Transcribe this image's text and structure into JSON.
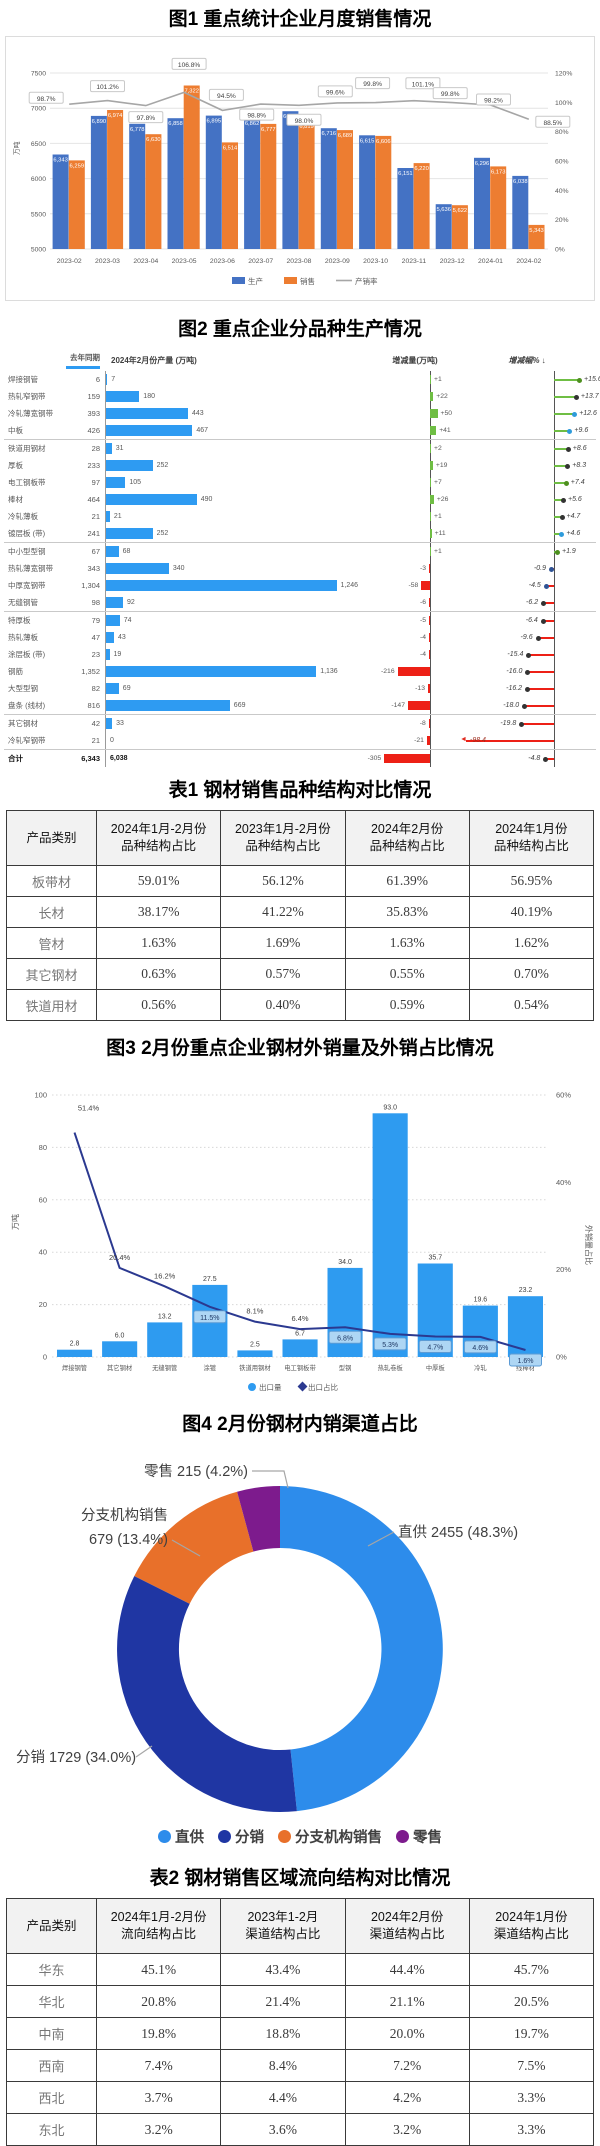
{
  "fig1": {
    "title": "图1 重点统计企业月度销售情况"
  },
  "fig2": {
    "title": "图2 重点企业分品种生产情况"
  },
  "fig3": {
    "title": "图3 2月份重点企业钢材外销量及外销占比情况"
  },
  "fig4": {
    "title": "图4 2月份钢材内销渠道占比"
  },
  "table1": {
    "title": "表1 钢材销售品种结构对比情况",
    "headers": [
      "产品类别",
      "2024年1月-2月份\n品种结构占比",
      "2023年1月-2月份\n品种结构占比",
      "2024年2月份\n品种结构占比",
      "2024年1月份\n品种结构占比"
    ],
    "rows": [
      [
        "板带材",
        "59.01%",
        "56.12%",
        "61.39%",
        "56.95%"
      ],
      [
        "长材",
        "38.17%",
        "41.22%",
        "35.83%",
        "40.19%"
      ],
      [
        "管材",
        "1.63%",
        "1.69%",
        "1.63%",
        "1.62%"
      ],
      [
        "其它钢材",
        "0.63%",
        "0.57%",
        "0.55%",
        "0.70%"
      ],
      [
        "铁道用材",
        "0.56%",
        "0.40%",
        "0.59%",
        "0.54%"
      ]
    ]
  },
  "table2": {
    "title": "表2 钢材销售区域流向结构对比情况",
    "headers": [
      "产品类别",
      "2024年1月-2月份\n流向结构占比",
      "2023年1-2月\n渠道结构占比",
      "2024年2月份\n渠道结构占比",
      "2024年1月份\n渠道结构占比"
    ],
    "rows": [
      [
        "华东",
        "45.1%",
        "43.4%",
        "44.4%",
        "45.7%"
      ],
      [
        "华北",
        "20.8%",
        "21.4%",
        "21.1%",
        "20.5%"
      ],
      [
        "中南",
        "19.8%",
        "18.8%",
        "20.0%",
        "19.7%"
      ],
      [
        "西南",
        "7.4%",
        "8.4%",
        "7.2%",
        "7.5%"
      ],
      [
        "西北",
        "3.7%",
        "4.4%",
        "4.2%",
        "3.3%"
      ],
      [
        "东北",
        "3.2%",
        "3.6%",
        "3.2%",
        "3.3%"
      ]
    ]
  },
  "chart_data": [
    {
      "figure": 1,
      "type": "bar",
      "title": "图1 重点统计企业月度销售情况",
      "ylabel": "万吨",
      "y_left_ticks": [
        5000,
        5500,
        6000,
        6500,
        7000,
        7500
      ],
      "y_right_ticks": [
        "0%",
        "20%",
        "40%",
        "60%",
        "80%",
        "100%",
        "120%"
      ],
      "ylim": [
        5000,
        7500
      ],
      "ylim_right": [
        0,
        120
      ],
      "categories": [
        "2023-02",
        "2023-03",
        "2023-04",
        "2023-05",
        "2023-06",
        "2023-07",
        "2023-08",
        "2023-09",
        "2023-10",
        "2023-11",
        "2023-12",
        "2024-01",
        "2024-02"
      ],
      "series": [
        {
          "name": "生产",
          "type": "bar",
          "color": "#4472C4",
          "values": [
            6343,
            6890,
            6778,
            6858,
            6895,
            6862,
            6957,
            6716,
            6615,
            6151,
            5636,
            6296,
            6038
          ]
        },
        {
          "name": "销售",
          "type": "bar",
          "color": "#ED7D31",
          "values": [
            6259,
            6974,
            6630,
            7322,
            6514,
            6777,
            6819,
            6689,
            6606,
            6220,
            5622,
            6173,
            5343
          ]
        },
        {
          "name": "产销率",
          "type": "line",
          "color": "#A6A6A6",
          "values": [
            98.7,
            101.2,
            97.8,
            106.8,
            94.5,
            98.8,
            98.0,
            99.6,
            99.8,
            101.1,
            99.8,
            98.2,
            88.5
          ]
        }
      ],
      "legend_position": "bottom"
    },
    {
      "figure": 2,
      "type": "table-bar",
      "title": "图2 重点企业分品种生产情况",
      "header": {
        "prev": "去年同期",
        "cur": "2024年2月份产量 (万吨)",
        "delta": "增减量(万吨)",
        "pct": "增减幅% ↓"
      },
      "rows": [
        {
          "name": "焊接钢管",
          "prev_l": "6",
          "cur": 7,
          "cur_l": "7",
          "delta": 1,
          "delta_l": "+1",
          "pct": 15.6,
          "pct_l": "+15.6",
          "dot": "#4E8F1F"
        },
        {
          "name": "热轧窄钢带",
          "prev_l": "159",
          "cur": 180,
          "cur_l": "180",
          "delta": 22,
          "delta_l": "+22",
          "pct": 13.7,
          "pct_l": "+13.7",
          "dot": "#333"
        },
        {
          "name": "冷轧薄宽钢带",
          "prev_l": "393",
          "cur": 443,
          "cur_l": "443",
          "delta": 50,
          "delta_l": "+50",
          "pct": 12.6,
          "pct_l": "+12.6",
          "dot": "#2E9BDB"
        },
        {
          "name": "中板",
          "prev_l": "426",
          "cur": 467,
          "cur_l": "467",
          "delta": 41,
          "delta_l": "+41",
          "pct": 9.6,
          "pct_l": "+9.6",
          "dot": "#2E9BDB"
        },
        {
          "name": "铁道用钢材",
          "prev_l": "28",
          "cur": 31,
          "cur_l": "31",
          "delta": 2,
          "delta_l": "+2",
          "pct": 8.6,
          "pct_l": "+8.6",
          "dot": "#333",
          "sep": true
        },
        {
          "name": "厚板",
          "prev_l": "233",
          "cur": 252,
          "cur_l": "252",
          "delta": 19,
          "delta_l": "+19",
          "pct": 8.3,
          "pct_l": "+8.3",
          "dot": "#333"
        },
        {
          "name": "电工钢板带",
          "prev_l": "97",
          "cur": 105,
          "cur_l": "105",
          "delta": 7,
          "delta_l": "+7",
          "pct": 7.4,
          "pct_l": "+7.4",
          "dot": "#4E8F1F"
        },
        {
          "name": "棒材",
          "prev_l": "464",
          "cur": 490,
          "cur_l": "490",
          "delta": 26,
          "delta_l": "+26",
          "pct": 5.6,
          "pct_l": "+5.6",
          "dot": "#333"
        },
        {
          "name": "冷轧薄板",
          "prev_l": "21",
          "cur": 21,
          "cur_l": "21",
          "delta": 1,
          "delta_l": "+1",
          "pct": 4.7,
          "pct_l": "+4.7",
          "dot": "#333"
        },
        {
          "name": "镀层板 (带)",
          "prev_l": "241",
          "cur": 252,
          "cur_l": "252",
          "delta": 11,
          "delta_l": "+11",
          "pct": 4.6,
          "pct_l": "+4.6",
          "dot": "#2E9BDB"
        },
        {
          "name": "中小型型钢",
          "prev_l": "67",
          "cur": 68,
          "cur_l": "68",
          "delta": 1,
          "delta_l": "+1",
          "pct": 1.9,
          "pct_l": "+1.9",
          "dot": "#4E8F1F",
          "sep": true
        },
        {
          "name": "热轧薄宽钢带",
          "prev_l": "343",
          "cur": 340,
          "cur_l": "340",
          "delta": -3,
          "delta_l": "-3",
          "pct": -0.9,
          "pct_l": "-0.9",
          "dot": "#2F5496"
        },
        {
          "name": "中厚宽钢带",
          "prev_l": "1,304",
          "cur": 1246,
          "cur_l": "1,246",
          "delta": -58,
          "delta_l": "-58",
          "pct": -4.5,
          "pct_l": "-4.5",
          "dot": "#2F5496"
        },
        {
          "name": "无缝钢管",
          "prev_l": "98",
          "cur": 92,
          "cur_l": "92",
          "delta": -6,
          "delta_l": "-6",
          "pct": -6.2,
          "pct_l": "-6.2",
          "dot": "#333"
        },
        {
          "name": "特厚板",
          "prev_l": "79",
          "cur": 74,
          "cur_l": "74",
          "delta": -5,
          "delta_l": "-5",
          "pct": -6.4,
          "pct_l": "-6.4",
          "dot": "#333",
          "sep": true
        },
        {
          "name": "热轧薄板",
          "prev_l": "47",
          "cur": 43,
          "cur_l": "43",
          "delta": -4,
          "delta_l": "-4",
          "pct": -9.6,
          "pct_l": "-9.6",
          "dot": "#333"
        },
        {
          "name": "涂层板 (带)",
          "prev_l": "23",
          "cur": 19,
          "cur_l": "19",
          "delta": -4,
          "delta_l": "-4",
          "pct": -15.4,
          "pct_l": "-15.4",
          "dot": "#333"
        },
        {
          "name": "钢筋",
          "prev_l": "1,352",
          "cur": 1136,
          "cur_l": "1,136",
          "delta": -216,
          "delta_l": "-216",
          "pct": -16.0,
          "pct_l": "-16.0",
          "dot": "#333"
        },
        {
          "name": "大型型钢",
          "prev_l": "82",
          "cur": 69,
          "cur_l": "69",
          "delta": -13,
          "delta_l": "-13",
          "pct": -16.2,
          "pct_l": "-16.2",
          "dot": "#333"
        },
        {
          "name": "盘条 (线材)",
          "prev_l": "816",
          "cur": 669,
          "cur_l": "669",
          "delta": -147,
          "delta_l": "-147",
          "pct": -18.0,
          "pct_l": "-18.0",
          "dot": "#333"
        },
        {
          "name": "其它钢材",
          "prev_l": "42",
          "cur": 33,
          "cur_l": "33",
          "delta": -8,
          "delta_l": "-8",
          "pct": -19.8,
          "pct_l": "-19.8",
          "dot": "#333",
          "sep": true
        },
        {
          "name": "冷轧窄钢带",
          "prev_l": "21",
          "cur": 0,
          "cur_l": "0",
          "delta": -21,
          "delta_l": "-21",
          "pct": -98.4,
          "pct_l": "-98.4",
          "dot": "#333"
        },
        {
          "name": "合计",
          "prev_l": "6,343",
          "cur": 6038,
          "cur_l": "6,038",
          "delta": -305,
          "delta_l": "-305",
          "pct": -4.8,
          "pct_l": "-4.8",
          "dot": "#333",
          "sep": true,
          "total": true,
          "nobar": true
        }
      ]
    },
    {
      "figure": 3,
      "type": "bar",
      "title": "图3 2月份重点企业钢材外销量及外销占比情况",
      "ylabel": "万吨",
      "ylabel_right": "外销量占比",
      "y_left_ticks": [
        0,
        20,
        40,
        60,
        80,
        100
      ],
      "y_right_ticks": [
        "0%",
        "20%",
        "40%",
        "60%"
      ],
      "ylim": [
        0,
        100
      ],
      "ylim_right": [
        0,
        60
      ],
      "categories": [
        "焊接钢管",
        "其它钢材",
        "无缝钢管",
        "涂镀",
        "铁道用钢材",
        "电工钢板带",
        "型钢",
        "热轧卷板",
        "中厚板",
        "冷轧",
        "线棒材"
      ],
      "series": [
        {
          "name": "出口量",
          "type": "bar",
          "color": "#2E9BF0",
          "values": [
            2.8,
            6.0,
            13.2,
            27.5,
            2.5,
            6.7,
            34.0,
            93.0,
            35.7,
            19.6,
            23.2
          ]
        },
        {
          "name": "出口占比",
          "type": "line",
          "color": "#2B3990",
          "values": [
            51.4,
            20.4,
            16.2,
            11.5,
            8.1,
            6.4,
            6.8,
            5.3,
            4.7,
            4.6,
            1.6
          ],
          "boxed_labels": [
            false,
            false,
            false,
            true,
            false,
            false,
            true,
            true,
            true,
            true,
            true
          ]
        }
      ],
      "legend_position": "bottom"
    },
    {
      "figure": 4,
      "type": "pie",
      "title": "图4 2月份钢材内销渠道占比",
      "donut": true,
      "slices": [
        {
          "label": "直供",
          "value": 2455,
          "pct": "48.3%",
          "callout": [
            "直供 2455 (48.3%)"
          ],
          "color": "#2D8CEB"
        },
        {
          "label": "分销",
          "value": 1729,
          "pct": "34.0%",
          "callout": [
            "分销 1729 (34.0%)"
          ],
          "color": "#1F36A3"
        },
        {
          "label": "分支机构销售",
          "value": 679,
          "pct": "13.4%",
          "callout": [
            "分支机构销售",
            "679 (13.4%)"
          ],
          "color": "#E8702A"
        },
        {
          "label": "零售",
          "value": 215,
          "pct": "4.2%",
          "callout": [
            "零售 215 (4.2%)"
          ],
          "color": "#7D1B8D"
        }
      ],
      "legend": [
        "直供",
        "分销",
        "分支机构销售",
        "零售"
      ]
    }
  ]
}
